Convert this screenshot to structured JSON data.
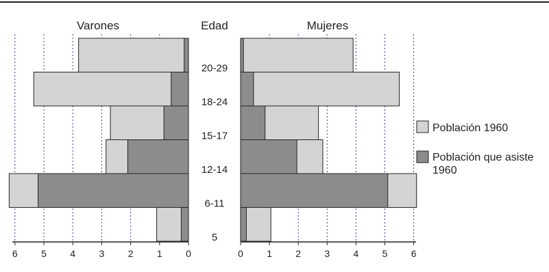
{
  "chart_data": {
    "type": "bar",
    "orientation": "horizontal",
    "layout": "population-pyramid",
    "age_axis_title": "Edad",
    "age_labels": [
      "20-29",
      "18-24",
      "15-17",
      "12-14",
      "6-11",
      "5"
    ],
    "left_panel": {
      "title": "Varones",
      "xlim": [
        0,
        6
      ],
      "xticks": [
        "6",
        "5",
        "4",
        "3",
        "2",
        "1",
        "0"
      ],
      "series": [
        {
          "name": "Población 1960",
          "values": [
            3.8,
            5.35,
            2.7,
            2.85,
            6.2,
            1.1
          ]
        },
        {
          "name": "Población que asiste 1960",
          "values": [
            0.15,
            0.6,
            0.85,
            2.1,
            5.2,
            0.25
          ]
        }
      ]
    },
    "right_panel": {
      "title": "Mujeres",
      "xlim": [
        0,
        6
      ],
      "xticks": [
        "0",
        "1",
        "2",
        "3",
        "4",
        "5",
        "6"
      ],
      "series": [
        {
          "name": "Población 1960",
          "values": [
            3.9,
            5.5,
            2.7,
            2.85,
            6.1,
            1.05
          ]
        },
        {
          "name": "Población que asiste 1960",
          "values": [
            0.1,
            0.45,
            0.85,
            1.95,
            5.1,
            0.2
          ]
        }
      ]
    },
    "legend": {
      "placement": "right",
      "items": [
        {
          "label": "Población 1960",
          "color": "#d4d4d4"
        },
        {
          "label": "Población que asiste 1960",
          "color": "#8c8c8c"
        }
      ]
    },
    "grid": "vertical-dotted",
    "colors": {
      "total": "#d4d4d4",
      "attending": "#8c8c8c",
      "grid": "#3a3aa0"
    }
  }
}
